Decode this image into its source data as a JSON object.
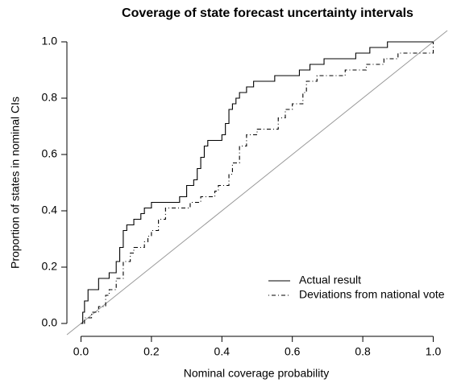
{
  "chart_data": {
    "type": "step",
    "title": "Coverage of state forecast uncertainty intervals",
    "xlabel": "Nominal coverage probability",
    "ylabel": "Proportion of states in nominal CIs",
    "xlim": [
      -0.04,
      1.04
    ],
    "ylim": [
      -0.04,
      1.04
    ],
    "xticks": [
      {
        "value": 0,
        "label": "0.0"
      },
      0.2,
      0.4,
      0.6,
      0.8,
      {
        "value": 1,
        "label": "1.0"
      }
    ],
    "yticks": [
      {
        "value": 0,
        "label": "0.0"
      },
      0.2,
      0.4,
      0.6,
      0.8,
      {
        "value": 1,
        "label": "1.0"
      }
    ],
    "reference_line": "diagonal",
    "reference_color": "#999999",
    "legend": "bottomright",
    "series": [
      {
        "name": "Actual result",
        "color": "#000000",
        "linestyle": "solid",
        "x": [
          0,
          0.005,
          0.01,
          0.02,
          0.05,
          0.08,
          0.1,
          0.11,
          0.12,
          0.13,
          0.15,
          0.17,
          0.18,
          0.2,
          0.28,
          0.3,
          0.32,
          0.33,
          0.34,
          0.35,
          0.36,
          0.4,
          0.41,
          0.42,
          0.43,
          0.44,
          0.45,
          0.47,
          0.49,
          0.55,
          0.62,
          0.65,
          0.69,
          0.78,
          0.82,
          0.87,
          1.0
        ],
        "values": [
          0,
          0.04,
          0.08,
          0.12,
          0.16,
          0.18,
          0.22,
          0.27,
          0.33,
          0.35,
          0.37,
          0.39,
          0.41,
          0.43,
          0.45,
          0.49,
          0.51,
          0.55,
          0.59,
          0.63,
          0.65,
          0.67,
          0.71,
          0.76,
          0.78,
          0.8,
          0.82,
          0.84,
          0.86,
          0.88,
          0.9,
          0.92,
          0.94,
          0.96,
          0.98,
          1.0,
          1.0
        ]
      },
      {
        "name": "Deviations from national vote",
        "color": "#000000",
        "linestyle": "dashdot",
        "x": [
          0,
          0.01,
          0.03,
          0.05,
          0.07,
          0.08,
          0.1,
          0.12,
          0.14,
          0.15,
          0.18,
          0.19,
          0.2,
          0.22,
          0.24,
          0.31,
          0.34,
          0.38,
          0.39,
          0.42,
          0.43,
          0.45,
          0.47,
          0.5,
          0.56,
          0.58,
          0.6,
          0.63,
          0.64,
          0.67,
          0.75,
          0.81,
          0.86,
          0.9,
          1.0
        ],
        "values": [
          0,
          0.02,
          0.04,
          0.06,
          0.1,
          0.12,
          0.16,
          0.22,
          0.25,
          0.27,
          0.29,
          0.31,
          0.33,
          0.37,
          0.41,
          0.43,
          0.45,
          0.47,
          0.49,
          0.53,
          0.57,
          0.63,
          0.67,
          0.69,
          0.73,
          0.76,
          0.78,
          0.82,
          0.86,
          0.88,
          0.9,
          0.92,
          0.94,
          0.96,
          1.0
        ]
      }
    ]
  }
}
